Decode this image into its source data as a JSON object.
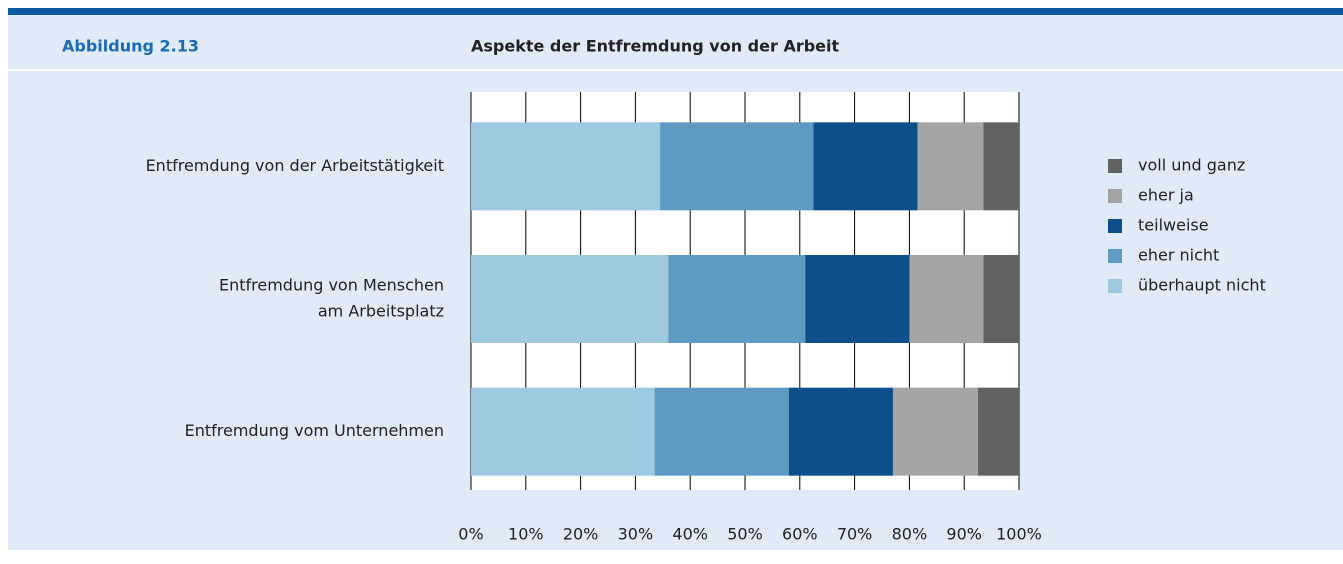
{
  "chart_data": {
    "type": "stacked_barh",
    "figure_label": "Abbildung 2.13",
    "title": "Aspekte der Entfremdung von der Arbeit",
    "categories": [
      "Entfremdung von der Arbeitstätigkeit",
      [
        "Entfremdung von Menschen",
        "am Arbeitsplatz"
      ],
      "Entfremdung vom Unternehmen"
    ],
    "series": [
      {
        "name": "überhaupt nicht",
        "color": "#9ecae1",
        "values": [
          34.5,
          36,
          33.5
        ]
      },
      {
        "name": "eher nicht",
        "color": "#5f9ac2",
        "values": [
          28,
          25,
          24.5
        ]
      },
      {
        "name": "teilweise",
        "color": "#0d4f8b",
        "values": [
          19,
          19,
          19
        ]
      },
      {
        "name": "eher ja",
        "color": "#a3a5a6",
        "values": [
          12,
          13.5,
          15.5
        ]
      },
      {
        "name": "voll und ganz",
        "color": "#5f6364",
        "values": [
          6.5,
          6.5,
          7.5
        ]
      }
    ],
    "xlim": [
      0,
      100
    ],
    "xticks": [
      {
        "value": 0,
        "label": "0%"
      },
      {
        "value": 10,
        "label": "10%"
      },
      {
        "value": 20,
        "label": "20%"
      },
      {
        "value": 30,
        "label": "30%"
      },
      {
        "value": 40,
        "label": "40%"
      },
      {
        "value": 50,
        "label": "50%"
      },
      {
        "value": 60,
        "label": "60%"
      },
      {
        "value": 70,
        "label": "70%"
      },
      {
        "value": 80,
        "label": "80%"
      },
      {
        "value": 90,
        "label": "90%"
      },
      {
        "value": 100,
        "label": "100%"
      }
    ],
    "grid": true,
    "legend": "right"
  }
}
